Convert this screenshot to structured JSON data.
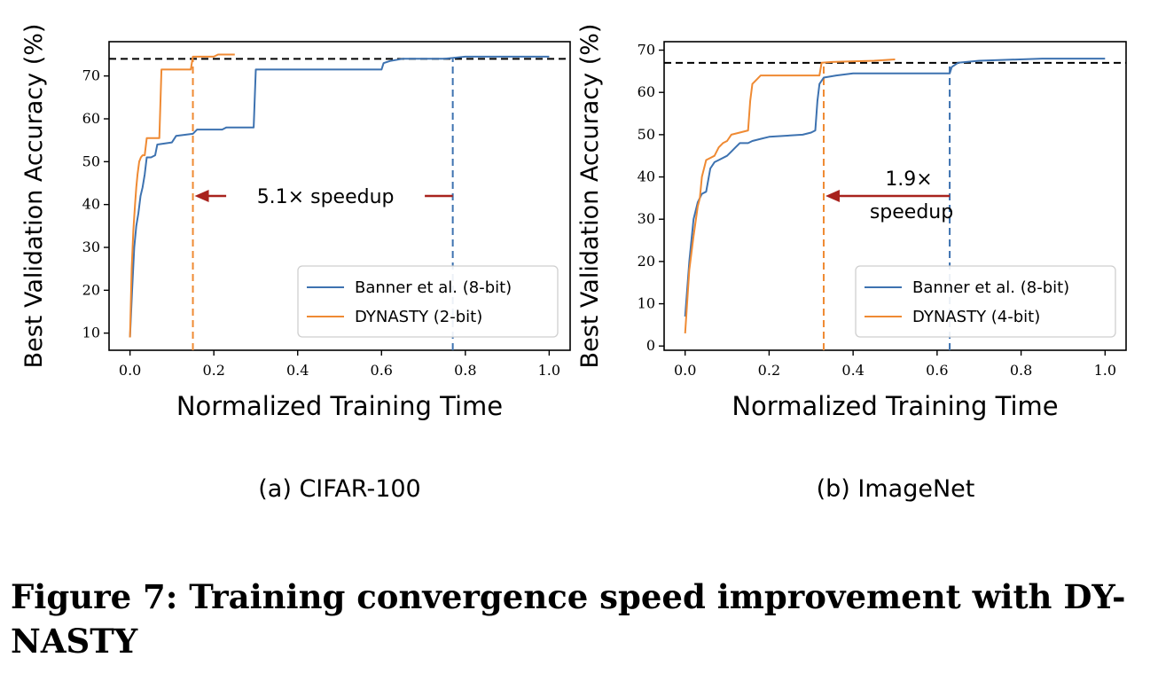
{
  "figure_caption": "Figure 7: Training convergence speed improvement with DY-NASTY",
  "colors": {
    "blue": "#3d72b0",
    "orange": "#ef8a33",
    "arrow": "#a8221d",
    "ref": "#000000"
  },
  "chart_data": [
    {
      "type": "line",
      "caption": "(a) CIFAR-100",
      "xlabel": "Normalized Training Time",
      "ylabel": "Best Validation Accuracy (%)",
      "xlim": [
        -0.05,
        1.05
      ],
      "ylim": [
        6,
        78
      ],
      "xticks": [
        0.0,
        0.2,
        0.4,
        0.6,
        0.8,
        1.0
      ],
      "xtick_labels": [
        "0.0",
        "0.2",
        "0.4",
        "0.6",
        "0.8",
        "1.0"
      ],
      "yticks": [
        10,
        20,
        30,
        40,
        50,
        60,
        70
      ],
      "ytick_labels": [
        "10",
        "20",
        "30",
        "40",
        "50",
        "60",
        "70"
      ],
      "grid": false,
      "legend_placement": "lower-right",
      "reference_line_y": 74,
      "series": [
        {
          "name": "Banner et al. (8-bit)",
          "color": "#3d72b0",
          "points": [
            [
              0.0,
              9
            ],
            [
              0.005,
              20
            ],
            [
              0.01,
              30
            ],
            [
              0.015,
              35
            ],
            [
              0.02,
              38
            ],
            [
              0.025,
              42
            ],
            [
              0.03,
              44
            ],
            [
              0.035,
              47
            ],
            [
              0.04,
              51
            ],
            [
              0.05,
              51
            ],
            [
              0.06,
              51.5
            ],
            [
              0.065,
              54
            ],
            [
              0.1,
              54.5
            ],
            [
              0.11,
              56
            ],
            [
              0.15,
              56.5
            ],
            [
              0.16,
              57.5
            ],
            [
              0.22,
              57.5
            ],
            [
              0.23,
              58
            ],
            [
              0.295,
              58
            ],
            [
              0.3,
              71.5
            ],
            [
              0.6,
              71.5
            ],
            [
              0.605,
              73
            ],
            [
              0.62,
              73.5
            ],
            [
              0.65,
              74
            ],
            [
              0.75,
              74
            ],
            [
              0.8,
              74.5
            ],
            [
              1.0,
              74.5
            ]
          ]
        },
        {
          "name": "DYNASTY (2-bit)",
          "color": "#ef8a33",
          "points": [
            [
              0.0,
              9
            ],
            [
              0.004,
              25
            ],
            [
              0.008,
              34
            ],
            [
              0.012,
              40
            ],
            [
              0.015,
              44
            ],
            [
              0.018,
              47
            ],
            [
              0.022,
              50
            ],
            [
              0.026,
              51
            ],
            [
              0.03,
              51.5
            ],
            [
              0.035,
              51.5
            ],
            [
              0.04,
              55.5
            ],
            [
              0.07,
              55.5
            ],
            [
              0.075,
              71.5
            ],
            [
              0.145,
              71.5
            ],
            [
              0.15,
              74.5
            ],
            [
              0.2,
              74.5
            ],
            [
              0.21,
              75
            ],
            [
              0.25,
              75
            ]
          ]
        }
      ],
      "vlines": [
        {
          "x": 0.15,
          "color": "#ef8a33"
        },
        {
          "x": 0.77,
          "color": "#3d72b0"
        }
      ],
      "annotation": {
        "text": "5.1× speedup",
        "text_lines": [
          "5.1× speedup"
        ],
        "arrow_from_x": 0.77,
        "arrow_to_x": 0.15,
        "y": 42
      }
    },
    {
      "type": "line",
      "caption": "(b) ImageNet",
      "xlabel": "Normalized Training Time",
      "ylabel": "Best Validation Accuracy (%)",
      "xlim": [
        -0.05,
        1.05
      ],
      "ylim": [
        -1,
        72
      ],
      "xticks": [
        0.0,
        0.2,
        0.4,
        0.6,
        0.8,
        1.0
      ],
      "xtick_labels": [
        "0.0",
        "0.2",
        "0.4",
        "0.6",
        "0.8",
        "1.0"
      ],
      "yticks": [
        0,
        10,
        20,
        30,
        40,
        50,
        60,
        70
      ],
      "ytick_labels": [
        "0",
        "10",
        "20",
        "30",
        "40",
        "50",
        "60",
        "70"
      ],
      "grid": false,
      "legend_placement": "lower-right",
      "reference_line_y": 67,
      "series": [
        {
          "name": "Banner et al. (8-bit)",
          "color": "#3d72b0",
          "points": [
            [
              0.0,
              7
            ],
            [
              0.01,
              20
            ],
            [
              0.02,
              30
            ],
            [
              0.03,
              34
            ],
            [
              0.04,
              36
            ],
            [
              0.05,
              36.5
            ],
            [
              0.06,
              42
            ],
            [
              0.07,
              43.5
            ],
            [
              0.08,
              44
            ],
            [
              0.1,
              45
            ],
            [
              0.11,
              46
            ],
            [
              0.12,
              47
            ],
            [
              0.13,
              48
            ],
            [
              0.15,
              48
            ],
            [
              0.16,
              48.5
            ],
            [
              0.18,
              49
            ],
            [
              0.2,
              49.5
            ],
            [
              0.28,
              50
            ],
            [
              0.3,
              50.5
            ],
            [
              0.31,
              51
            ],
            [
              0.315,
              58
            ],
            [
              0.32,
              62
            ],
            [
              0.33,
              63.5
            ],
            [
              0.36,
              64
            ],
            [
              0.4,
              64.5
            ],
            [
              0.63,
              64.5
            ],
            [
              0.635,
              66
            ],
            [
              0.65,
              67
            ],
            [
              0.7,
              67.5
            ],
            [
              0.85,
              68
            ],
            [
              1.0,
              68
            ]
          ]
        },
        {
          "name": "DYNASTY (4-bit)",
          "color": "#ef8a33",
          "points": [
            [
              0.0,
              3
            ],
            [
              0.01,
              18
            ],
            [
              0.02,
              26
            ],
            [
              0.03,
              33
            ],
            [
              0.035,
              35
            ],
            [
              0.04,
              40
            ],
            [
              0.05,
              44
            ],
            [
              0.06,
              44.5
            ],
            [
              0.07,
              45
            ],
            [
              0.08,
              47
            ],
            [
              0.09,
              48
            ],
            [
              0.1,
              48.5
            ],
            [
              0.11,
              50
            ],
            [
              0.13,
              50.5
            ],
            [
              0.15,
              51
            ],
            [
              0.155,
              58
            ],
            [
              0.16,
              62
            ],
            [
              0.17,
              63
            ],
            [
              0.18,
              64
            ],
            [
              0.32,
              64
            ],
            [
              0.325,
              67
            ],
            [
              0.35,
              67.2
            ],
            [
              0.45,
              67.5
            ],
            [
              0.5,
              67.8
            ]
          ]
        }
      ],
      "vlines": [
        {
          "x": 0.33,
          "color": "#ef8a33"
        },
        {
          "x": 0.63,
          "color": "#3d72b0"
        }
      ],
      "annotation": {
        "text": "1.9× speedup",
        "text_lines": [
          "1.9×",
          "speedup"
        ],
        "arrow_from_x": 0.63,
        "arrow_to_x": 0.33,
        "y": 35.5
      }
    }
  ]
}
